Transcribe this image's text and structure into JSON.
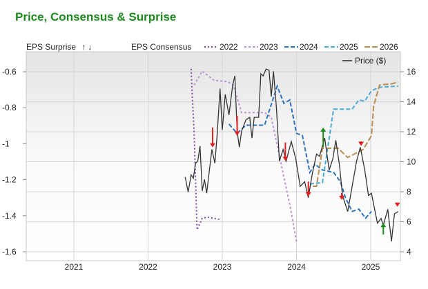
{
  "chart_data": {
    "type": "line",
    "title": "Price, Consensus & Surprise",
    "legend": {
      "surprise_label": "EPS Surprise",
      "consensus_label": "EPS Consensus",
      "price_label": "Price ($)"
    },
    "colors": {
      "2022": "#7a4aa6",
      "2023": "#b894d4",
      "2024": "#2a72bf",
      "2025": "#49aad8",
      "2026": "#b98d4f",
      "price": "#333333",
      "up": "#1e8a1e",
      "down": "#e02020",
      "title": "#1d8a1d"
    },
    "x_ticks": [
      2021,
      2022,
      2023,
      2024,
      2025
    ],
    "xlim": [
      2020.35,
      2025.4
    ],
    "left_axis": {
      "ylim": [
        -1.65,
        -0.48
      ],
      "ticks": [
        -0.6,
        -0.8,
        -1,
        -1.2,
        -1.4,
        -1.6
      ]
    },
    "right_axis": {
      "ylim": [
        3.8,
        18.3
      ],
      "ticks": [
        16,
        14,
        12,
        10,
        8,
        6,
        4
      ]
    },
    "consensus_series": [
      {
        "name": "2022",
        "dash": "2,3",
        "points": [
          [
            2022.58,
            -0.584
          ],
          [
            2022.59,
            -0.686
          ],
          [
            2022.62,
            -0.929
          ],
          [
            2022.66,
            -1.478
          ],
          [
            2022.73,
            -1.414
          ],
          [
            2022.8,
            -1.408
          ],
          [
            2022.98,
            -1.421
          ]
        ]
      },
      {
        "name": "2023",
        "dash": "3,3",
        "points": [
          [
            2022.62,
            -0.674
          ],
          [
            2022.73,
            -0.597
          ],
          [
            2022.89,
            -0.648
          ],
          [
            2023.07,
            -0.655
          ],
          [
            2023.15,
            -0.674
          ],
          [
            2023.26,
            -0.827
          ],
          [
            2023.57,
            -0.827
          ],
          [
            2023.66,
            -0.852
          ],
          [
            2023.79,
            -1.108
          ],
          [
            2023.91,
            -1.338
          ],
          [
            2024.0,
            -1.542
          ]
        ]
      },
      {
        "name": "2024",
        "dash": "6,3",
        "points": [
          [
            2023.09,
            -0.891
          ],
          [
            2023.2,
            -0.942
          ],
          [
            2023.32,
            -0.897
          ],
          [
            2023.57,
            -0.897
          ],
          [
            2023.74,
            -0.68
          ],
          [
            2023.83,
            -0.776
          ],
          [
            2023.91,
            -0.757
          ],
          [
            2024.0,
            -0.942
          ],
          [
            2024.08,
            -0.955
          ],
          [
            2024.18,
            -1.159
          ],
          [
            2024.25,
            -1.114
          ],
          [
            2024.35,
            -1.146
          ],
          [
            2024.5,
            -1.159
          ],
          [
            2024.59,
            -1.21
          ],
          [
            2024.66,
            -1.3
          ],
          [
            2024.75,
            -1.376
          ],
          [
            2024.84,
            -1.363
          ],
          [
            2024.93,
            -1.414
          ],
          [
            2025.01,
            -1.376
          ]
        ]
      },
      {
        "name": "2025",
        "dash": "6,3",
        "points": [
          [
            2024.18,
            -1.223
          ],
          [
            2024.35,
            -1.216
          ],
          [
            2024.5,
            -0.808
          ],
          [
            2024.75,
            -0.808
          ],
          [
            2024.84,
            -0.757
          ],
          [
            2024.92,
            -0.763
          ],
          [
            2025.01,
            -0.706
          ],
          [
            2025.12,
            -0.686
          ],
          [
            2025.37,
            -0.68
          ]
        ]
      },
      {
        "name": "2026",
        "dash": "8,3",
        "points": [
          [
            2024.22,
            -1.236
          ],
          [
            2024.27,
            -1.236
          ],
          [
            2024.35,
            -1.025
          ],
          [
            2024.56,
            -1.025
          ],
          [
            2024.69,
            -1.076
          ],
          [
            2024.78,
            -1.057
          ],
          [
            2024.9,
            -1.031
          ],
          [
            2025.01,
            -0.955
          ],
          [
            2025.04,
            -0.789
          ],
          [
            2025.12,
            -0.674
          ],
          [
            2025.28,
            -0.667
          ],
          [
            2025.37,
            -0.658
          ]
        ]
      }
    ],
    "price": [
      [
        2022.5,
        8.98
      ],
      [
        2022.54,
        7.98
      ],
      [
        2022.58,
        9.13
      ],
      [
        2022.61,
        8.9
      ],
      [
        2022.64,
        9.9
      ],
      [
        2022.67,
        10.05
      ],
      [
        2022.7,
        11.05
      ],
      [
        2022.73,
        8.06
      ],
      [
        2022.76,
        8.82
      ],
      [
        2022.79,
        7.9
      ],
      [
        2022.83,
        9.59
      ],
      [
        2022.86,
        10.82
      ],
      [
        2022.9,
        9.9
      ],
      [
        2022.93,
        11.74
      ],
      [
        2022.97,
        14.88
      ],
      [
        2023.0,
        12.12
      ],
      [
        2023.04,
        14.49
      ],
      [
        2023.09,
        13.12
      ],
      [
        2023.14,
        15.11
      ],
      [
        2023.17,
        15.72
      ],
      [
        2023.2,
        12.04
      ],
      [
        2023.23,
        10.97
      ],
      [
        2023.26,
        12.04
      ],
      [
        2023.32,
        12.81
      ],
      [
        2023.37,
        12.96
      ],
      [
        2023.4,
        11.58
      ],
      [
        2023.43,
        12.96
      ],
      [
        2023.49,
        12.96
      ],
      [
        2023.52,
        15.87
      ],
      [
        2023.55,
        15.72
      ],
      [
        2023.59,
        16.18
      ],
      [
        2023.63,
        16.1
      ],
      [
        2023.66,
        14.34
      ],
      [
        2023.69,
        16.03
      ],
      [
        2023.73,
        13.57
      ],
      [
        2023.77,
        10.05
      ],
      [
        2023.82,
        10.82
      ],
      [
        2023.86,
        10.05
      ],
      [
        2023.93,
        11.35
      ],
      [
        2023.99,
        10.2
      ],
      [
        2024.05,
        8.36
      ],
      [
        2024.11,
        8.67
      ],
      [
        2024.16,
        7.6
      ],
      [
        2024.21,
        9.13
      ],
      [
        2024.27,
        10.51
      ],
      [
        2024.31,
        10.36
      ],
      [
        2024.38,
        11.58
      ],
      [
        2024.44,
        9.44
      ],
      [
        2024.49,
        10.2
      ],
      [
        2024.53,
        11.43
      ],
      [
        2024.58,
        9.74
      ],
      [
        2024.62,
        7.75
      ],
      [
        2024.69,
        6.68
      ],
      [
        2024.75,
        8.36
      ],
      [
        2024.81,
        10.05
      ],
      [
        2024.86,
        10.97
      ],
      [
        2024.92,
        9.44
      ],
      [
        2024.97,
        7.75
      ],
      [
        2025.01,
        7.9
      ],
      [
        2025.09,
        5.91
      ],
      [
        2025.14,
        6.22
      ],
      [
        2025.17,
        5.76
      ],
      [
        2025.23,
        6.83
      ],
      [
        2025.28,
        4.69
      ],
      [
        2025.32,
        6.53
      ],
      [
        2025.37,
        6.68
      ]
    ],
    "surprises": [
      {
        "t": 2022.87,
        "from": -0.91,
        "to": -1.02,
        "dir": "down"
      },
      {
        "t": 2023.2,
        "from": -0.846,
        "to": -0.955,
        "dir": "down"
      },
      {
        "t": 2023.85,
        "from": -0.993,
        "to": -1.095,
        "dir": "down"
      },
      {
        "t": 2024.16,
        "from": -1.21,
        "to": -1.293,
        "dir": "down"
      },
      {
        "t": 2024.36,
        "from": -1.019,
        "to": -0.91,
        "dir": "up"
      },
      {
        "t": 2024.61,
        "from": -1.274,
        "to": -1.312,
        "dir": "down"
      },
      {
        "t": 2024.87,
        "from": -0.987,
        "to": -1.012,
        "dir": "down"
      },
      {
        "t": 2025.17,
        "from": -1.504,
        "to": -1.44,
        "dir": "up"
      },
      {
        "t": 2025.36,
        "from": -1.331,
        "to": -1.35,
        "dir": "down"
      }
    ]
  }
}
